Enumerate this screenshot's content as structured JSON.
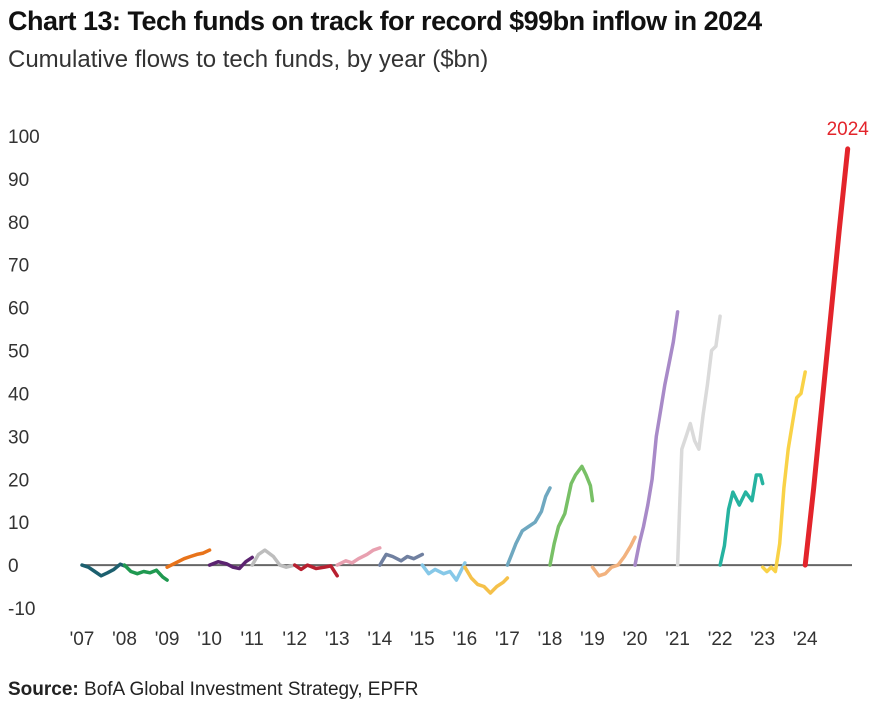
{
  "title": "Chart 13: Tech funds on track for record $99bn inflow in 2024",
  "subtitle": "Cumulative flows to tech funds, by year ($bn)",
  "source": {
    "label": "Source:",
    "text": "BofA Global Investment Strategy, EPFR"
  },
  "chart_data": {
    "type": "line",
    "title": "Chart 13: Tech funds on track for record $99bn inflow in 2024",
    "subtitle": "Cumulative flows to tech funds, by year ($bn)",
    "xlabel": "",
    "ylabel": "",
    "ylim": [
      -10,
      100
    ],
    "xlim": [
      2007,
      2025.1
    ],
    "y_ticks": [
      100,
      90,
      80,
      70,
      60,
      50,
      40,
      30,
      20,
      10,
      0,
      -10
    ],
    "x_ticks": [
      "'07",
      "'08",
      "'09",
      "'10",
      "'11",
      "'12",
      "'13",
      "'14",
      "'15",
      "'16",
      "'17",
      "'18",
      "'19",
      "'20",
      "'21",
      "'22",
      "'23",
      "'24"
    ],
    "zero_line": true,
    "grid": false,
    "legend": "none",
    "annotation": {
      "text": "2024",
      "color": "#e3242b"
    },
    "series": [
      {
        "year": 2007,
        "color": "#1c5f6e",
        "x": [
          2007.0,
          2007.15,
          2007.3,
          2007.45,
          2007.6,
          2007.75,
          2007.9,
          2008.0
        ],
        "y": [
          0,
          -0.5,
          -1.5,
          -2.5,
          -1.8,
          -1.0,
          0.2,
          -0.2
        ]
      },
      {
        "year": 2008,
        "color": "#1f9950",
        "x": [
          2008.0,
          2008.15,
          2008.3,
          2008.45,
          2008.6,
          2008.75,
          2008.9,
          2009.0
        ],
        "y": [
          0,
          -1.5,
          -2.0,
          -1.5,
          -1.8,
          -1.2,
          -2.8,
          -3.5
        ]
      },
      {
        "year": 2009,
        "color": "#e8731a",
        "x": [
          2009.0,
          2009.2,
          2009.4,
          2009.55,
          2009.7,
          2009.85,
          2010.0
        ],
        "y": [
          -0.5,
          0.5,
          1.5,
          2.0,
          2.5,
          2.8,
          3.5
        ]
      },
      {
        "year": 2010,
        "color": "#5b2370",
        "x": [
          2010.0,
          2010.2,
          2010.4,
          2010.55,
          2010.7,
          2010.85,
          2011.0
        ],
        "y": [
          0,
          0.8,
          0.3,
          -0.5,
          -0.8,
          0.8,
          1.8
        ]
      },
      {
        "year": 2011,
        "color": "#bdbdbd",
        "x": [
          2011.0,
          2011.15,
          2011.3,
          2011.5,
          2011.65,
          2011.8,
          2012.0
        ],
        "y": [
          0,
          2.5,
          3.5,
          2.0,
          0,
          -0.5,
          0
        ]
      },
      {
        "year": 2012,
        "color": "#b82030",
        "x": [
          2012.0,
          2012.15,
          2012.3,
          2012.5,
          2012.7,
          2012.85,
          2013.0
        ],
        "y": [
          0,
          -1.0,
          0,
          -0.8,
          -0.5,
          -0.2,
          -2.5
        ]
      },
      {
        "year": 2013,
        "color": "#e8a0b0",
        "x": [
          2013.0,
          2013.2,
          2013.35,
          2013.5,
          2013.7,
          2013.85,
          2014.0
        ],
        "y": [
          0,
          1.0,
          0.5,
          1.5,
          2.5,
          3.5,
          4.0
        ]
      },
      {
        "year": 2014,
        "color": "#7080a0",
        "x": [
          2014.0,
          2014.15,
          2014.3,
          2014.5,
          2014.65,
          2014.8,
          2015.0
        ],
        "y": [
          0,
          2.5,
          2.0,
          1.0,
          2.0,
          1.5,
          2.5
        ]
      },
      {
        "year": 2015,
        "color": "#86c8e8",
        "x": [
          2015.0,
          2015.15,
          2015.3,
          2015.5,
          2015.65,
          2015.8,
          2016.0
        ],
        "y": [
          0,
          -2.0,
          -1.0,
          -2.0,
          -1.5,
          -3.5,
          0.5
        ]
      },
      {
        "year": 2016,
        "color": "#f5c14a",
        "x": [
          2016.0,
          2016.15,
          2016.3,
          2016.45,
          2016.6,
          2016.75,
          2016.9,
          2017.0
        ],
        "y": [
          -0.5,
          -3.0,
          -4.5,
          -5.0,
          -6.5,
          -5.0,
          -4.0,
          -3.0
        ]
      },
      {
        "year": 2017,
        "color": "#6fa8c0",
        "x": [
          2017.0,
          2017.1,
          2017.2,
          2017.35,
          2017.5,
          2017.65,
          2017.8,
          2017.9,
          2018.0
        ],
        "y": [
          0,
          2.5,
          5.0,
          8.0,
          9.0,
          10.0,
          12.5,
          16.0,
          18.0
        ]
      },
      {
        "year": 2018,
        "color": "#78c066",
        "x": [
          2018.0,
          2018.1,
          2018.2,
          2018.35,
          2018.5,
          2018.6,
          2018.75,
          2018.85,
          2018.95,
          2019.0
        ],
        "y": [
          0,
          5.0,
          9.0,
          12.0,
          19.0,
          21.0,
          23.0,
          21.0,
          18.5,
          15.0
        ]
      },
      {
        "year": 2019,
        "color": "#f2b27e",
        "x": [
          2019.0,
          2019.15,
          2019.3,
          2019.45,
          2019.6,
          2019.75,
          2019.9,
          2020.0
        ],
        "y": [
          -0.5,
          -2.5,
          -2.0,
          -0.5,
          0,
          2.0,
          4.5,
          6.5
        ]
      },
      {
        "year": 2020,
        "color": "#a88ac8",
        "x": [
          2020.0,
          2020.1,
          2020.2,
          2020.3,
          2020.4,
          2020.5,
          2020.6,
          2020.7,
          2020.8,
          2020.9,
          2021.0
        ],
        "y": [
          0,
          5.0,
          9.0,
          14.0,
          20.0,
          30.0,
          36.0,
          42.0,
          47.0,
          52.0,
          59.0
        ]
      },
      {
        "year": 2021,
        "color": "#dadada",
        "x": [
          2021.0,
          2021.05,
          2021.1,
          2021.2,
          2021.3,
          2021.4,
          2021.5,
          2021.6,
          2021.7,
          2021.8,
          2021.9,
          2022.0
        ],
        "y": [
          0,
          14.0,
          27.0,
          30.0,
          33.0,
          29.0,
          27.0,
          35.0,
          42.0,
          50.0,
          51.0,
          58.0
        ]
      },
      {
        "year": 2022,
        "color": "#26b3a0",
        "x": [
          2022.0,
          2022.1,
          2022.2,
          2022.3,
          2022.45,
          2022.6,
          2022.75,
          2022.85,
          2022.95,
          2023.0
        ],
        "y": [
          0,
          4.5,
          13.0,
          17.0,
          14.0,
          17.0,
          15.0,
          21.0,
          21.0,
          19.0
        ]
      },
      {
        "year": 2023,
        "color": "#f9d247",
        "x": [
          2023.0,
          2023.1,
          2023.2,
          2023.3,
          2023.4,
          2023.5,
          2023.6,
          2023.7,
          2023.8,
          2023.9,
          2024.0
        ],
        "y": [
          -0.5,
          -1.5,
          -0.5,
          -1.5,
          5.0,
          18.0,
          27.0,
          33.0,
          39.0,
          40.0,
          45.0
        ]
      },
      {
        "year": 2024,
        "color": "#e3242b",
        "x": [
          2024.0,
          2024.2,
          2024.4,
          2024.6,
          2024.8,
          2025.0
        ],
        "y": [
          0,
          18.0,
          38.0,
          58.0,
          78.0,
          97.0
        ]
      }
    ]
  }
}
